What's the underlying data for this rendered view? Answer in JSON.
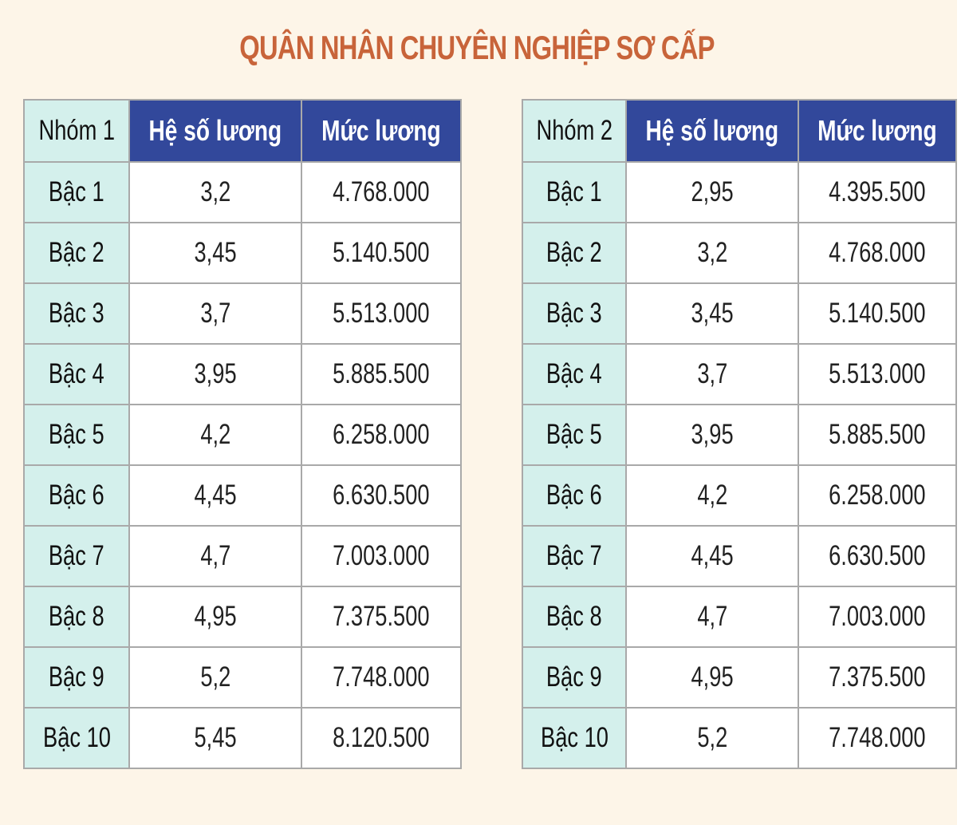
{
  "title": "QUÂN NHÂN CHUYÊN NGHIỆP SƠ CẤP",
  "tables": [
    {
      "group": "Nhóm 1",
      "col_coef": "Hệ số lương",
      "col_salary": "Mức lương",
      "rows": [
        {
          "level": "Bậc 1",
          "coef": "3,2",
          "salary": "4.768.000"
        },
        {
          "level": "Bậc 2",
          "coef": "3,45",
          "salary": "5.140.500"
        },
        {
          "level": "Bậc 3",
          "coef": "3,7",
          "salary": "5.513.000"
        },
        {
          "level": "Bậc 4",
          "coef": "3,95",
          "salary": "5.885.500"
        },
        {
          "level": "Bậc 5",
          "coef": "4,2",
          "salary": "6.258.000"
        },
        {
          "level": "Bậc 6",
          "coef": "4,45",
          "salary": "6.630.500"
        },
        {
          "level": "Bậc 7",
          "coef": "4,7",
          "salary": "7.003.000"
        },
        {
          "level": "Bậc 8",
          "coef": "4,95",
          "salary": "7.375.500"
        },
        {
          "level": "Bậc 9",
          "coef": "5,2",
          "salary": "7.748.000"
        },
        {
          "level": "Bậc 10",
          "coef": "5,45",
          "salary": "8.120.500"
        }
      ]
    },
    {
      "group": "Nhóm 2",
      "col_coef": "Hệ số lương",
      "col_salary": "Mức lương",
      "rows": [
        {
          "level": "Bậc 1",
          "coef": "2,95",
          "salary": "4.395.500"
        },
        {
          "level": "Bậc 2",
          "coef": "3,2",
          "salary": "4.768.000"
        },
        {
          "level": "Bậc 3",
          "coef": "3,45",
          "salary": "5.140.500"
        },
        {
          "level": "Bậc 4",
          "coef": "3,7",
          "salary": "5.513.000"
        },
        {
          "level": "Bậc 5",
          "coef": "3,95",
          "salary": "5.885.500"
        },
        {
          "level": "Bậc 6",
          "coef": "4,2",
          "salary": "6.258.000"
        },
        {
          "level": "Bậc 7",
          "coef": "4,45",
          "salary": "6.630.500"
        },
        {
          "level": "Bậc 8",
          "coef": "4,7",
          "salary": "7.003.000"
        },
        {
          "level": "Bậc 9",
          "coef": "4,95",
          "salary": "7.375.500"
        },
        {
          "level": "Bậc 10",
          "coef": "5,2",
          "salary": "7.748.000"
        }
      ]
    }
  ],
  "colors": {
    "background": "#fdf5e8",
    "title": "#c8643a",
    "header_blue": "#32489b",
    "level_cell": "#d4f0ec",
    "border": "#a9a9a9"
  }
}
